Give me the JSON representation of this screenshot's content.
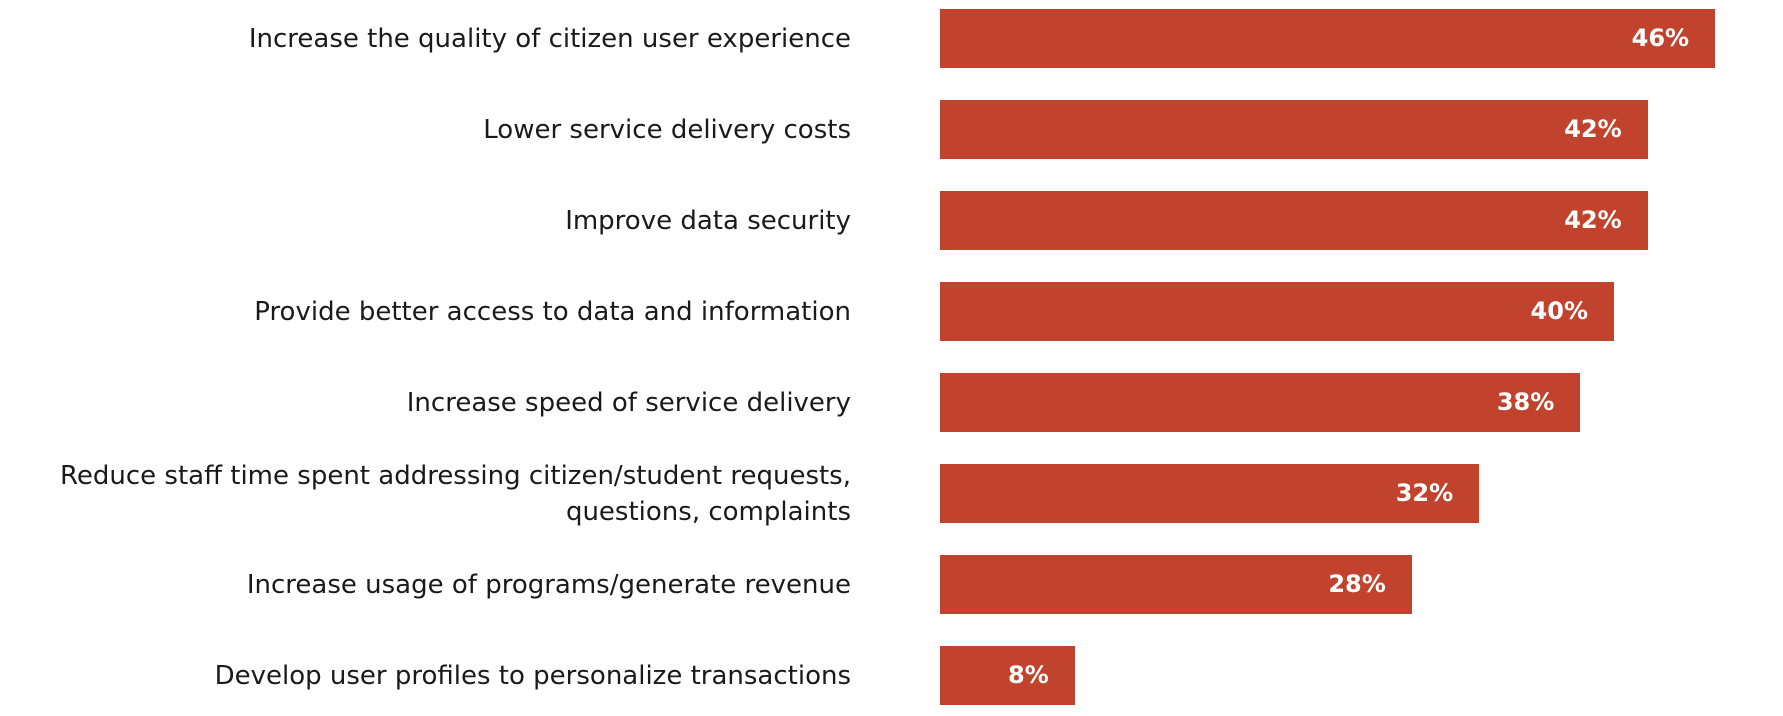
{
  "chart_data": {
    "type": "bar",
    "orientation": "horizontal",
    "categories": [
      "Increase the quality of citizen user experience",
      "Lower service delivery costs",
      "Improve data security",
      "Provide better access to data and information",
      "Increase speed of service delivery",
      "Reduce staff time  spent  addressing citizen/student requests,\nquestions, complaints",
      "Increase usage of  programs/generate revenue",
      "Develop user profiles to personalize transactions"
    ],
    "values": [
      46,
      42,
      42,
      40,
      38,
      32,
      28,
      8
    ],
    "value_labels": [
      "46%",
      "42%",
      "42%",
      "40%",
      "38%",
      "32%",
      "28%",
      "8%"
    ],
    "unit": "%",
    "bar_color": "#c1432d",
    "grid": false,
    "legend": "none"
  }
}
